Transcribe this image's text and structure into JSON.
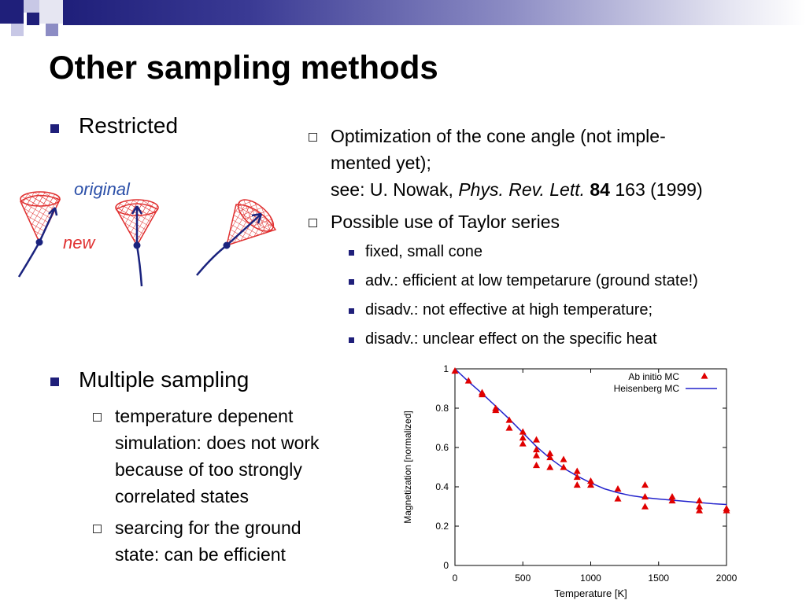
{
  "title": "Other sampling methods",
  "colors": {
    "accent": "#1f1f7a",
    "marker": "#e00000",
    "line": "#2222cc"
  },
  "left": {
    "restricted": "Restricted",
    "sketch": {
      "label_original": "original",
      "label_new": "new"
    },
    "multiple": "Multiple sampling",
    "sub_items": [
      {
        "lines": [
          "temperature depenent",
          "simulation: does not work",
          "because of too strongly",
          "correlated states"
        ]
      },
      {
        "lines": [
          "searcing for the ground",
          "state: can be efficient"
        ]
      }
    ]
  },
  "right": {
    "item1": {
      "line1": "Optimization of the cone angle (not imple-",
      "line2": "mented yet);",
      "ref_prefix": "see: U. Nowak, ",
      "ref_journal": "Phys. Rev. Lett.",
      "ref_volume": "84",
      "ref_rest": " 163 (1999)"
    },
    "item2": "Possible use of Taylor series",
    "sub_items": [
      "fixed, small cone",
      "adv.: efficient at low tempetarure (ground state!)",
      "disadv.: not effective at high temperature;",
      "disadv.: unclear effect on the specific heat"
    ]
  },
  "chart_data": {
    "type": "scatter",
    "xlabel": "Temperature [K]",
    "ylabel": "Magnetization [normalized]",
    "xlim": [
      0,
      2000
    ],
    "ylim": [
      0,
      1
    ],
    "x_ticks": [
      0,
      500,
      1000,
      1500,
      2000
    ],
    "y_ticks": [
      0,
      0.2,
      0.4,
      0.6,
      0.8,
      1
    ],
    "y_tick_labels": [
      "0",
      "0.2",
      "0.4",
      "0.6",
      "0.8",
      "1"
    ],
    "legend_position": "top-right",
    "series": [
      {
        "name": "Ab initio MC",
        "kind": "scatter",
        "marker": "triangle",
        "points": [
          [
            0,
            0.99
          ],
          [
            100,
            0.94
          ],
          [
            200,
            0.88
          ],
          [
            200,
            0.87
          ],
          [
            300,
            0.8
          ],
          [
            300,
            0.79
          ],
          [
            400,
            0.74
          ],
          [
            400,
            0.7
          ],
          [
            500,
            0.68
          ],
          [
            500,
            0.65
          ],
          [
            500,
            0.62
          ],
          [
            600,
            0.64
          ],
          [
            600,
            0.59
          ],
          [
            600,
            0.56
          ],
          [
            600,
            0.51
          ],
          [
            700,
            0.57
          ],
          [
            700,
            0.55
          ],
          [
            700,
            0.5
          ],
          [
            800,
            0.54
          ],
          [
            800,
            0.5
          ],
          [
            900,
            0.48
          ],
          [
            900,
            0.45
          ],
          [
            900,
            0.41
          ],
          [
            1000,
            0.43
          ],
          [
            1000,
            0.41
          ],
          [
            1200,
            0.39
          ],
          [
            1200,
            0.34
          ],
          [
            1400,
            0.41
          ],
          [
            1400,
            0.35
          ],
          [
            1400,
            0.3
          ],
          [
            1600,
            0.35
          ],
          [
            1600,
            0.33
          ],
          [
            1800,
            0.33
          ],
          [
            1800,
            0.3
          ],
          [
            1800,
            0.28
          ],
          [
            2000,
            0.29
          ],
          [
            2000,
            0.28
          ]
        ]
      },
      {
        "name": "Heisenberg MC",
        "kind": "line",
        "points": [
          [
            0,
            1.0
          ],
          [
            100,
            0.935
          ],
          [
            200,
            0.875
          ],
          [
            300,
            0.81
          ],
          [
            400,
            0.745
          ],
          [
            500,
            0.675
          ],
          [
            600,
            0.605
          ],
          [
            700,
            0.545
          ],
          [
            800,
            0.495
          ],
          [
            900,
            0.455
          ],
          [
            1000,
            0.42
          ],
          [
            1100,
            0.39
          ],
          [
            1200,
            0.37
          ],
          [
            1300,
            0.355
          ],
          [
            1400,
            0.345
          ],
          [
            1500,
            0.338
          ],
          [
            1600,
            0.332
          ],
          [
            1700,
            0.326
          ],
          [
            1800,
            0.32
          ],
          [
            1900,
            0.314
          ],
          [
            2000,
            0.31
          ]
        ]
      }
    ]
  }
}
